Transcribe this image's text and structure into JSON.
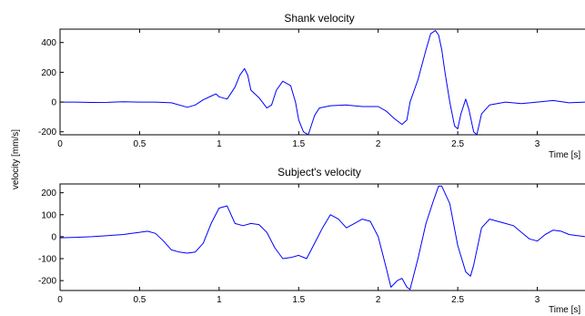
{
  "ylabel": "velocity [mm/s]",
  "line_color": "#0000ff",
  "chart_data": [
    {
      "type": "line",
      "title": "Shank velocity",
      "xlabel": "Time [s]",
      "xlim": [
        0,
        3.3
      ],
      "ylim": [
        -220,
        490
      ],
      "xticks": [
        0,
        0.5,
        1,
        1.5,
        2,
        2.5,
        3
      ],
      "yticks": [
        -200,
        0,
        200,
        400
      ],
      "grid": false,
      "series": [
        {
          "x": [
            0,
            0.1,
            0.2,
            0.3,
            0.4,
            0.5,
            0.6,
            0.7,
            0.8,
            0.85,
            0.9,
            0.95,
            0.98,
            1.0,
            1.05,
            1.1,
            1.13,
            1.16,
            1.18,
            1.2,
            1.25,
            1.3,
            1.33,
            1.36,
            1.4,
            1.45,
            1.48,
            1.5,
            1.53,
            1.56,
            1.6,
            1.63,
            1.7,
            1.8,
            1.9,
            2.0,
            2.05,
            2.1,
            2.15,
            2.18,
            2.2,
            2.25,
            2.3,
            2.33,
            2.36,
            2.38,
            2.4,
            2.42,
            2.45,
            2.48,
            2.5,
            2.52,
            2.55,
            2.57,
            2.6,
            2.62,
            2.65,
            2.7,
            2.8,
            2.9,
            3.0,
            3.1,
            3.2,
            3.3
          ],
          "y": [
            0,
            0,
            -3,
            -2,
            2,
            0,
            0,
            -5,
            -35,
            -20,
            15,
            40,
            55,
            35,
            20,
            100,
            180,
            225,
            180,
            80,
            30,
            -40,
            -20,
            80,
            140,
            110,
            0,
            -120,
            -200,
            -220,
            -90,
            -40,
            -25,
            -20,
            -30,
            -30,
            -60,
            -110,
            -150,
            -120,
            0,
            150,
            350,
            460,
            480,
            450,
            350,
            200,
            0,
            -160,
            -180,
            -80,
            20,
            -50,
            -200,
            -220,
            -80,
            -20,
            0,
            -10,
            0,
            10,
            -5,
            0
          ]
        }
      ]
    },
    {
      "type": "line",
      "title": "Subject's velocity",
      "xlabel": "Time [s]",
      "xlim": [
        0,
        3.3
      ],
      "ylim": [
        -245,
        240
      ],
      "xticks": [
        0,
        0.5,
        1,
        1.5,
        2,
        2.5,
        3
      ],
      "yticks": [
        -200,
        -100,
        0,
        100,
        200
      ],
      "grid": false,
      "series": [
        {
          "x": [
            0,
            0.1,
            0.2,
            0.3,
            0.4,
            0.45,
            0.5,
            0.55,
            0.6,
            0.65,
            0.7,
            0.75,
            0.8,
            0.85,
            0.9,
            0.95,
            1.0,
            1.05,
            1.1,
            1.15,
            1.2,
            1.25,
            1.3,
            1.35,
            1.4,
            1.45,
            1.5,
            1.55,
            1.6,
            1.65,
            1.7,
            1.75,
            1.8,
            1.85,
            1.9,
            1.95,
            2.0,
            2.05,
            2.08,
            2.12,
            2.15,
            2.18,
            2.2,
            2.25,
            2.3,
            2.35,
            2.38,
            2.4,
            2.45,
            2.5,
            2.55,
            2.58,
            2.6,
            2.65,
            2.7,
            2.75,
            2.8,
            2.85,
            2.9,
            2.95,
            3.0,
            3.05,
            3.1,
            3.15,
            3.2,
            3.25,
            3.3
          ],
          "y": [
            -5,
            -3,
            0,
            5,
            10,
            15,
            20,
            25,
            15,
            -20,
            -60,
            -70,
            -75,
            -70,
            -30,
            60,
            130,
            140,
            60,
            50,
            60,
            55,
            20,
            -50,
            -100,
            -95,
            -85,
            -100,
            -30,
            40,
            100,
            80,
            40,
            60,
            80,
            70,
            0,
            -140,
            -230,
            -200,
            -190,
            -230,
            -240,
            -100,
            60,
            170,
            230,
            230,
            150,
            -40,
            -160,
            -180,
            -130,
            40,
            80,
            70,
            60,
            50,
            20,
            -10,
            -20,
            10,
            30,
            25,
            10,
            5,
            0
          ]
        }
      ]
    }
  ]
}
